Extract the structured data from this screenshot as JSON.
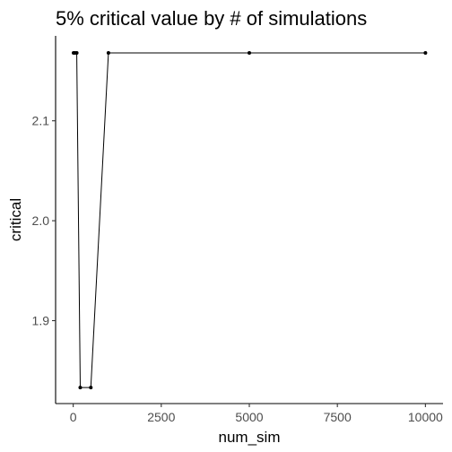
{
  "chart_data": {
    "type": "line",
    "title": "5% critical value by # of simulations",
    "xlabel": "num_sim",
    "ylabel": "critical",
    "x": [
      10,
      50,
      100,
      200,
      500,
      1000,
      5000,
      10000
    ],
    "y": [
      2.168,
      2.168,
      2.168,
      1.833,
      1.833,
      2.168,
      2.168,
      2.168
    ],
    "xlim": [
      -500,
      10500
    ],
    "ylim": [
      1.817,
      2.185
    ],
    "xticks": [
      0,
      2500,
      5000,
      7500,
      10000
    ],
    "xtick_labels": [
      "0",
      "2500",
      "5000",
      "7500",
      "10000"
    ],
    "yticks": [
      1.9,
      2.0,
      2.1
    ],
    "ytick_labels": [
      "1.9",
      "2.0",
      "2.1"
    ],
    "grid": false,
    "legend": "none",
    "line_color": "#000000",
    "point_color": "#000000"
  }
}
